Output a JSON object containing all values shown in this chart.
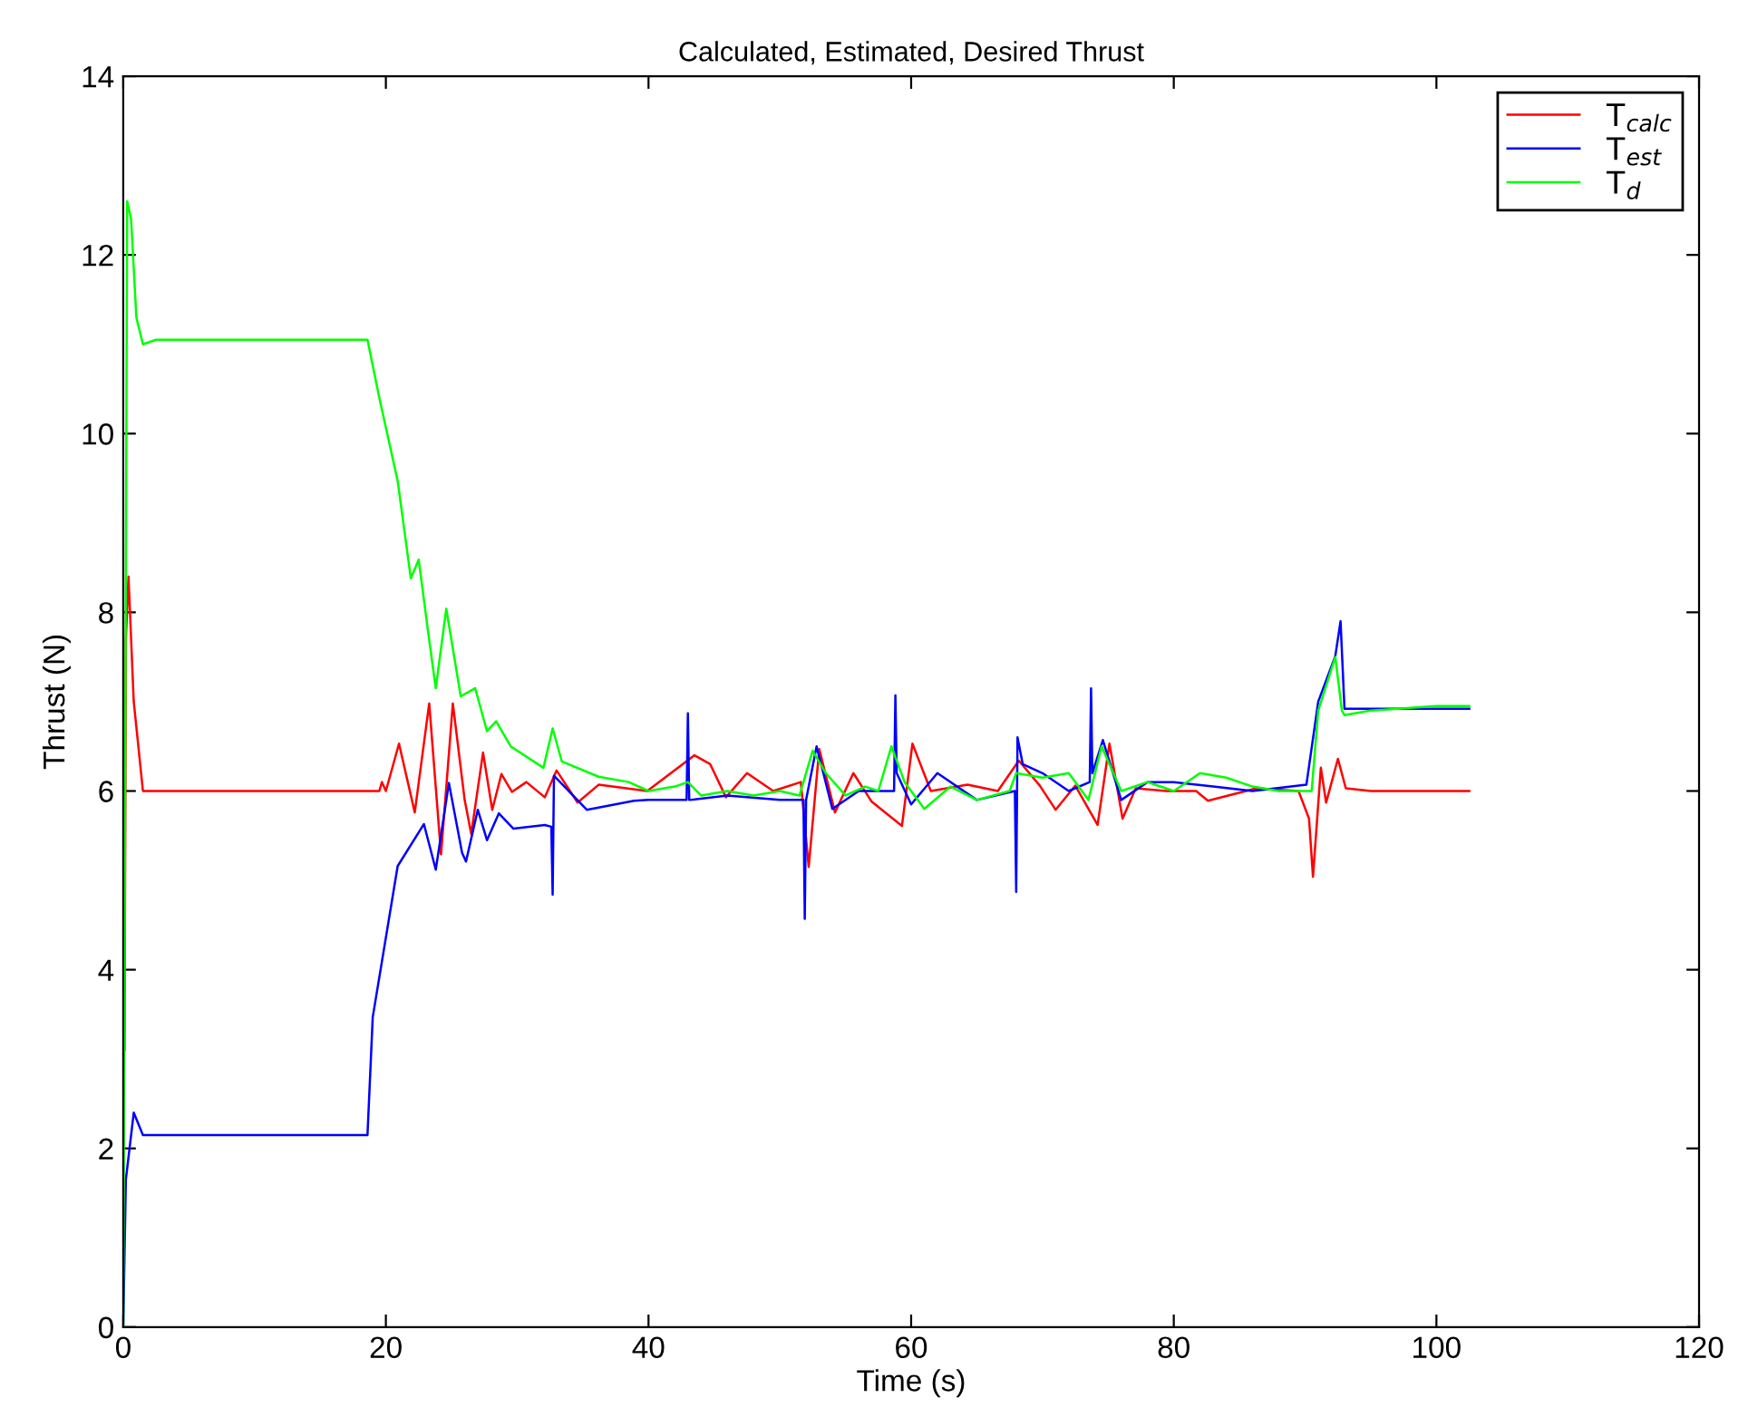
{
  "chart_data": {
    "type": "line",
    "title": "Calculated, Estimated, Desired Thrust",
    "xlabel": "Time (s)",
    "ylabel": "Thrust (N)",
    "xlim": [
      0,
      120
    ],
    "ylim": [
      0,
      14
    ],
    "xticks": [
      0,
      20,
      40,
      60,
      80,
      100,
      120
    ],
    "yticks": [
      0,
      2,
      4,
      6,
      8,
      10,
      12,
      14
    ],
    "grid": false,
    "legend": "top right",
    "marker": "none",
    "line_style": "solid",
    "series": [
      {
        "name": "T$_{calc}$",
        "color": "#ff0000",
        "x": [
          0.1,
          0.2,
          0.4,
          0.8,
          1.5,
          5,
          19.5,
          19.7,
          20.0,
          21.0,
          22.2,
          23.3,
          24.2,
          25.1,
          26.0,
          26.5,
          27.4,
          28.1,
          28.8,
          29.6,
          30.7,
          32.1,
          33.0,
          34.6,
          36.2,
          39.9,
          43.5,
          44.7,
          45.9,
          47.5,
          49.5,
          51.6,
          52.2,
          53.0,
          54.2,
          55.6,
          57.0,
          59.3,
          60.1,
          61.5,
          64.3,
          66.6,
          68.2,
          69.8,
          71.0,
          72.5,
          74.2,
          75.1,
          76.1,
          77.1,
          79.4,
          81.7,
          82.6,
          86.3,
          89.5,
          90.3,
          90.6,
          91.2,
          91.6,
          92.5,
          93.1,
          95,
          102.5
        ],
        "values": [
          3.1,
          7.7,
          8.4,
          7.0,
          6.0,
          6.0,
          6.0,
          6.1,
          6.0,
          6.53,
          5.76,
          6.98,
          5.29,
          6.98,
          5.9,
          5.52,
          6.43,
          5.79,
          6.19,
          5.99,
          6.1,
          5.93,
          6.23,
          5.87,
          6.07,
          6.0,
          6.4,
          6.3,
          5.93,
          6.2,
          6.0,
          6.1,
          5.15,
          6.47,
          5.76,
          6.2,
          5.88,
          5.61,
          6.53,
          6.0,
          6.07,
          6.0,
          6.34,
          6.06,
          5.79,
          6.06,
          5.62,
          6.53,
          5.69,
          6.03,
          6.0,
          6.0,
          5.89,
          6.03,
          6.0,
          5.69,
          5.04,
          6.26,
          5.87,
          6.36,
          6.03,
          6.0,
          6.0
        ]
      },
      {
        "name": "T$_{est}$",
        "color": "#0000ff",
        "x": [
          0,
          0.2,
          0.8,
          1.5,
          10,
          18.6,
          19.0,
          20.9,
          22.9,
          23.8,
          24.8,
          25.8,
          26.1,
          27.0,
          27.7,
          28.6,
          29.7,
          32.1,
          32.6,
          32.7,
          32.8,
          35.3,
          38.9,
          40,
          42.9,
          43.0,
          43.1,
          46,
          50,
          51.8,
          51.9,
          52.0,
          52.8,
          54,
          56,
          58.7,
          58.8,
          58.9,
          60,
          62,
          65,
          67.9,
          68.0,
          68.1,
          68.5,
          70,
          72,
          73.6,
          73.7,
          73.8,
          74.6,
          76,
          78,
          80,
          83,
          86,
          90.1,
          91.0,
          92.3,
          92.7,
          93.0,
          95,
          100,
          102.5
        ],
        "values": [
          0,
          1.65,
          2.4,
          2.15,
          2.15,
          2.15,
          3.47,
          5.16,
          5.63,
          5.12,
          6.09,
          5.31,
          5.21,
          5.79,
          5.45,
          5.75,
          5.58,
          5.62,
          5.6,
          4.84,
          6.17,
          5.79,
          5.89,
          5.9,
          5.9,
          6.87,
          5.9,
          5.95,
          5.9,
          5.9,
          4.57,
          5.9,
          6.5,
          5.8,
          6.0,
          6.0,
          7.07,
          6.2,
          5.85,
          6.2,
          5.9,
          6.0,
          4.87,
          6.6,
          6.3,
          6.2,
          6.0,
          6.1,
          7.15,
          6.2,
          6.57,
          5.9,
          6.1,
          6.1,
          6.05,
          6.0,
          6.07,
          7.0,
          7.51,
          7.9,
          6.92,
          6.92,
          6.92,
          6.92
        ]
      },
      {
        "name": "T$_{d}$",
        "color": "#00ff00",
        "x": [
          0,
          0.3,
          0.6,
          1.0,
          1.5,
          2.5,
          10,
          18.6,
          19.5,
          20.9,
          21.9,
          22.5,
          23.2,
          23.8,
          24.6,
          25.7,
          26.8,
          27.7,
          28.4,
          29.5,
          32.0,
          32.7,
          33.4,
          36.2,
          38.5,
          40,
          42,
          43,
          44,
          46,
          48,
          50,
          51.5,
          52.5,
          53.5,
          55,
          56.5,
          57.5,
          58.5,
          59.5,
          61,
          63,
          65,
          67.5,
          68,
          70,
          72,
          73.5,
          74.5,
          76,
          78,
          80,
          82,
          84,
          86,
          88,
          89.5,
          90.5,
          91,
          92.3,
          92.8,
          93,
          95,
          100,
          102.5
        ],
        "values": [
          0,
          12.6,
          12.4,
          11.3,
          11.0,
          11.05,
          11.05,
          11.05,
          10.4,
          9.47,
          8.38,
          8.59,
          7.8,
          7.15,
          8.04,
          7.06,
          7.15,
          6.67,
          6.78,
          6.5,
          6.26,
          6.7,
          6.33,
          6.16,
          6.1,
          6.0,
          6.05,
          6.1,
          5.95,
          6.0,
          5.95,
          6.0,
          5.95,
          6.45,
          6.2,
          5.95,
          6.05,
          6.0,
          6.5,
          6.1,
          5.8,
          6.05,
          5.9,
          6.0,
          6.2,
          6.15,
          6.2,
          5.9,
          6.5,
          6.0,
          6.1,
          6.0,
          6.2,
          6.15,
          6.05,
          6.0,
          6.0,
          6.0,
          6.9,
          7.5,
          6.9,
          6.85,
          6.9,
          6.95,
          6.95
        ]
      }
    ]
  }
}
